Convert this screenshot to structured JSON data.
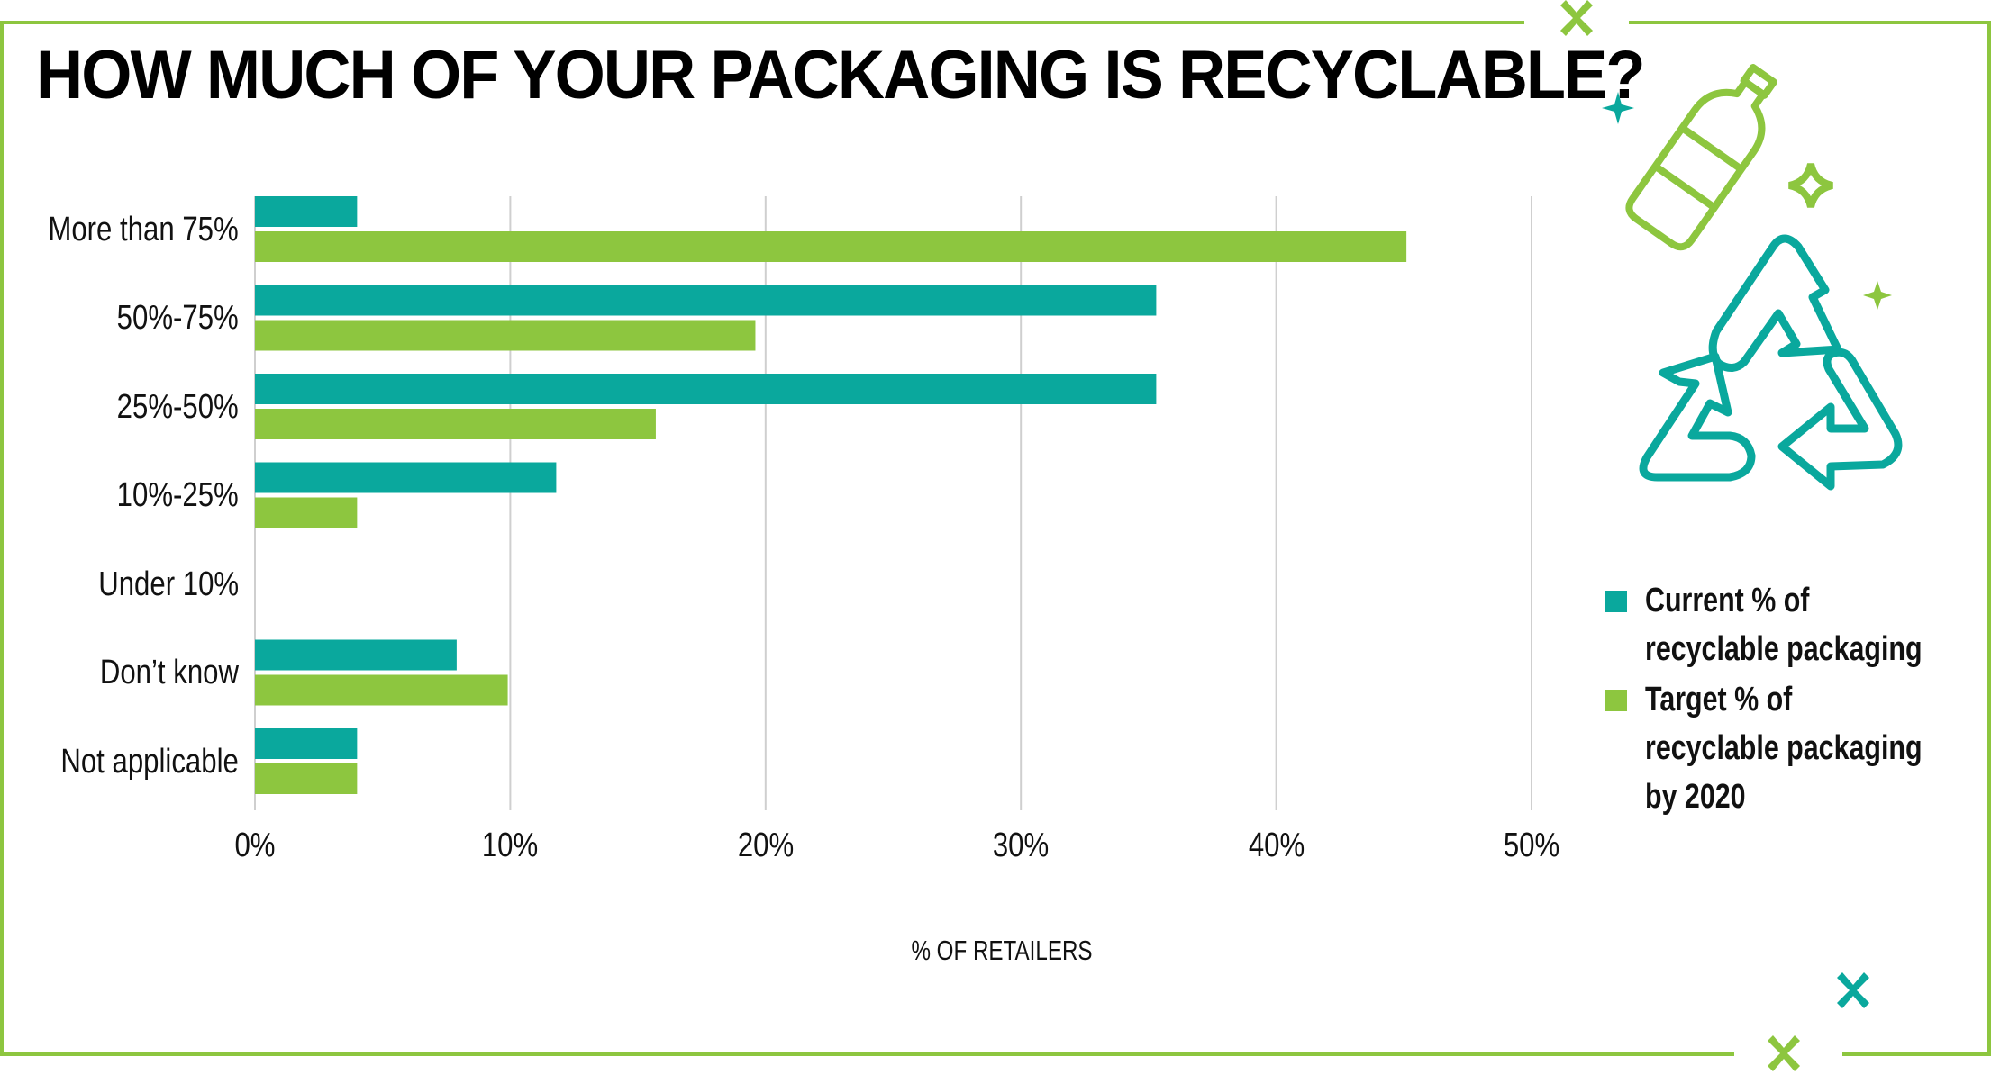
{
  "title": "HOW MUCH OF YOUR PACKAGING IS RECYCLABLE?",
  "colors": {
    "current": "#0aa89d",
    "target": "#8dc63f",
    "grid": "#cfcfcf",
    "frame": "#8dc63f"
  },
  "icons": [
    "bottle-icon",
    "recycle-icon",
    "sparkle-icon"
  ],
  "legend": {
    "current": "Current % of recyclable packaging",
    "target": "Target % of recyclable packaging by 2020"
  },
  "chart_data": {
    "type": "bar",
    "orientation": "horizontal",
    "title": "HOW MUCH OF YOUR PACKAGING IS RECYCLABLE?",
    "xlabel": "% OF RETAILERS",
    "categories": [
      "More than 75%",
      "50%-75%",
      "25%-50%",
      "10%-25%",
      "Under 10%",
      "Don’t know",
      "Not applicable"
    ],
    "series": [
      {
        "name": "Current % of recyclable packaging",
        "values": [
          4,
          35.3,
          35.3,
          11.8,
          0,
          7.9,
          4
        ]
      },
      {
        "name": "Target % of recyclable packaging by 2020",
        "values": [
          45.1,
          19.6,
          15.7,
          4,
          0,
          9.9,
          4
        ]
      }
    ],
    "xlim": [
      0,
      50
    ],
    "xticks": [
      "0%",
      "10%",
      "20%",
      "30%",
      "40%",
      "50%"
    ],
    "grid": true,
    "legend_position": "right"
  }
}
